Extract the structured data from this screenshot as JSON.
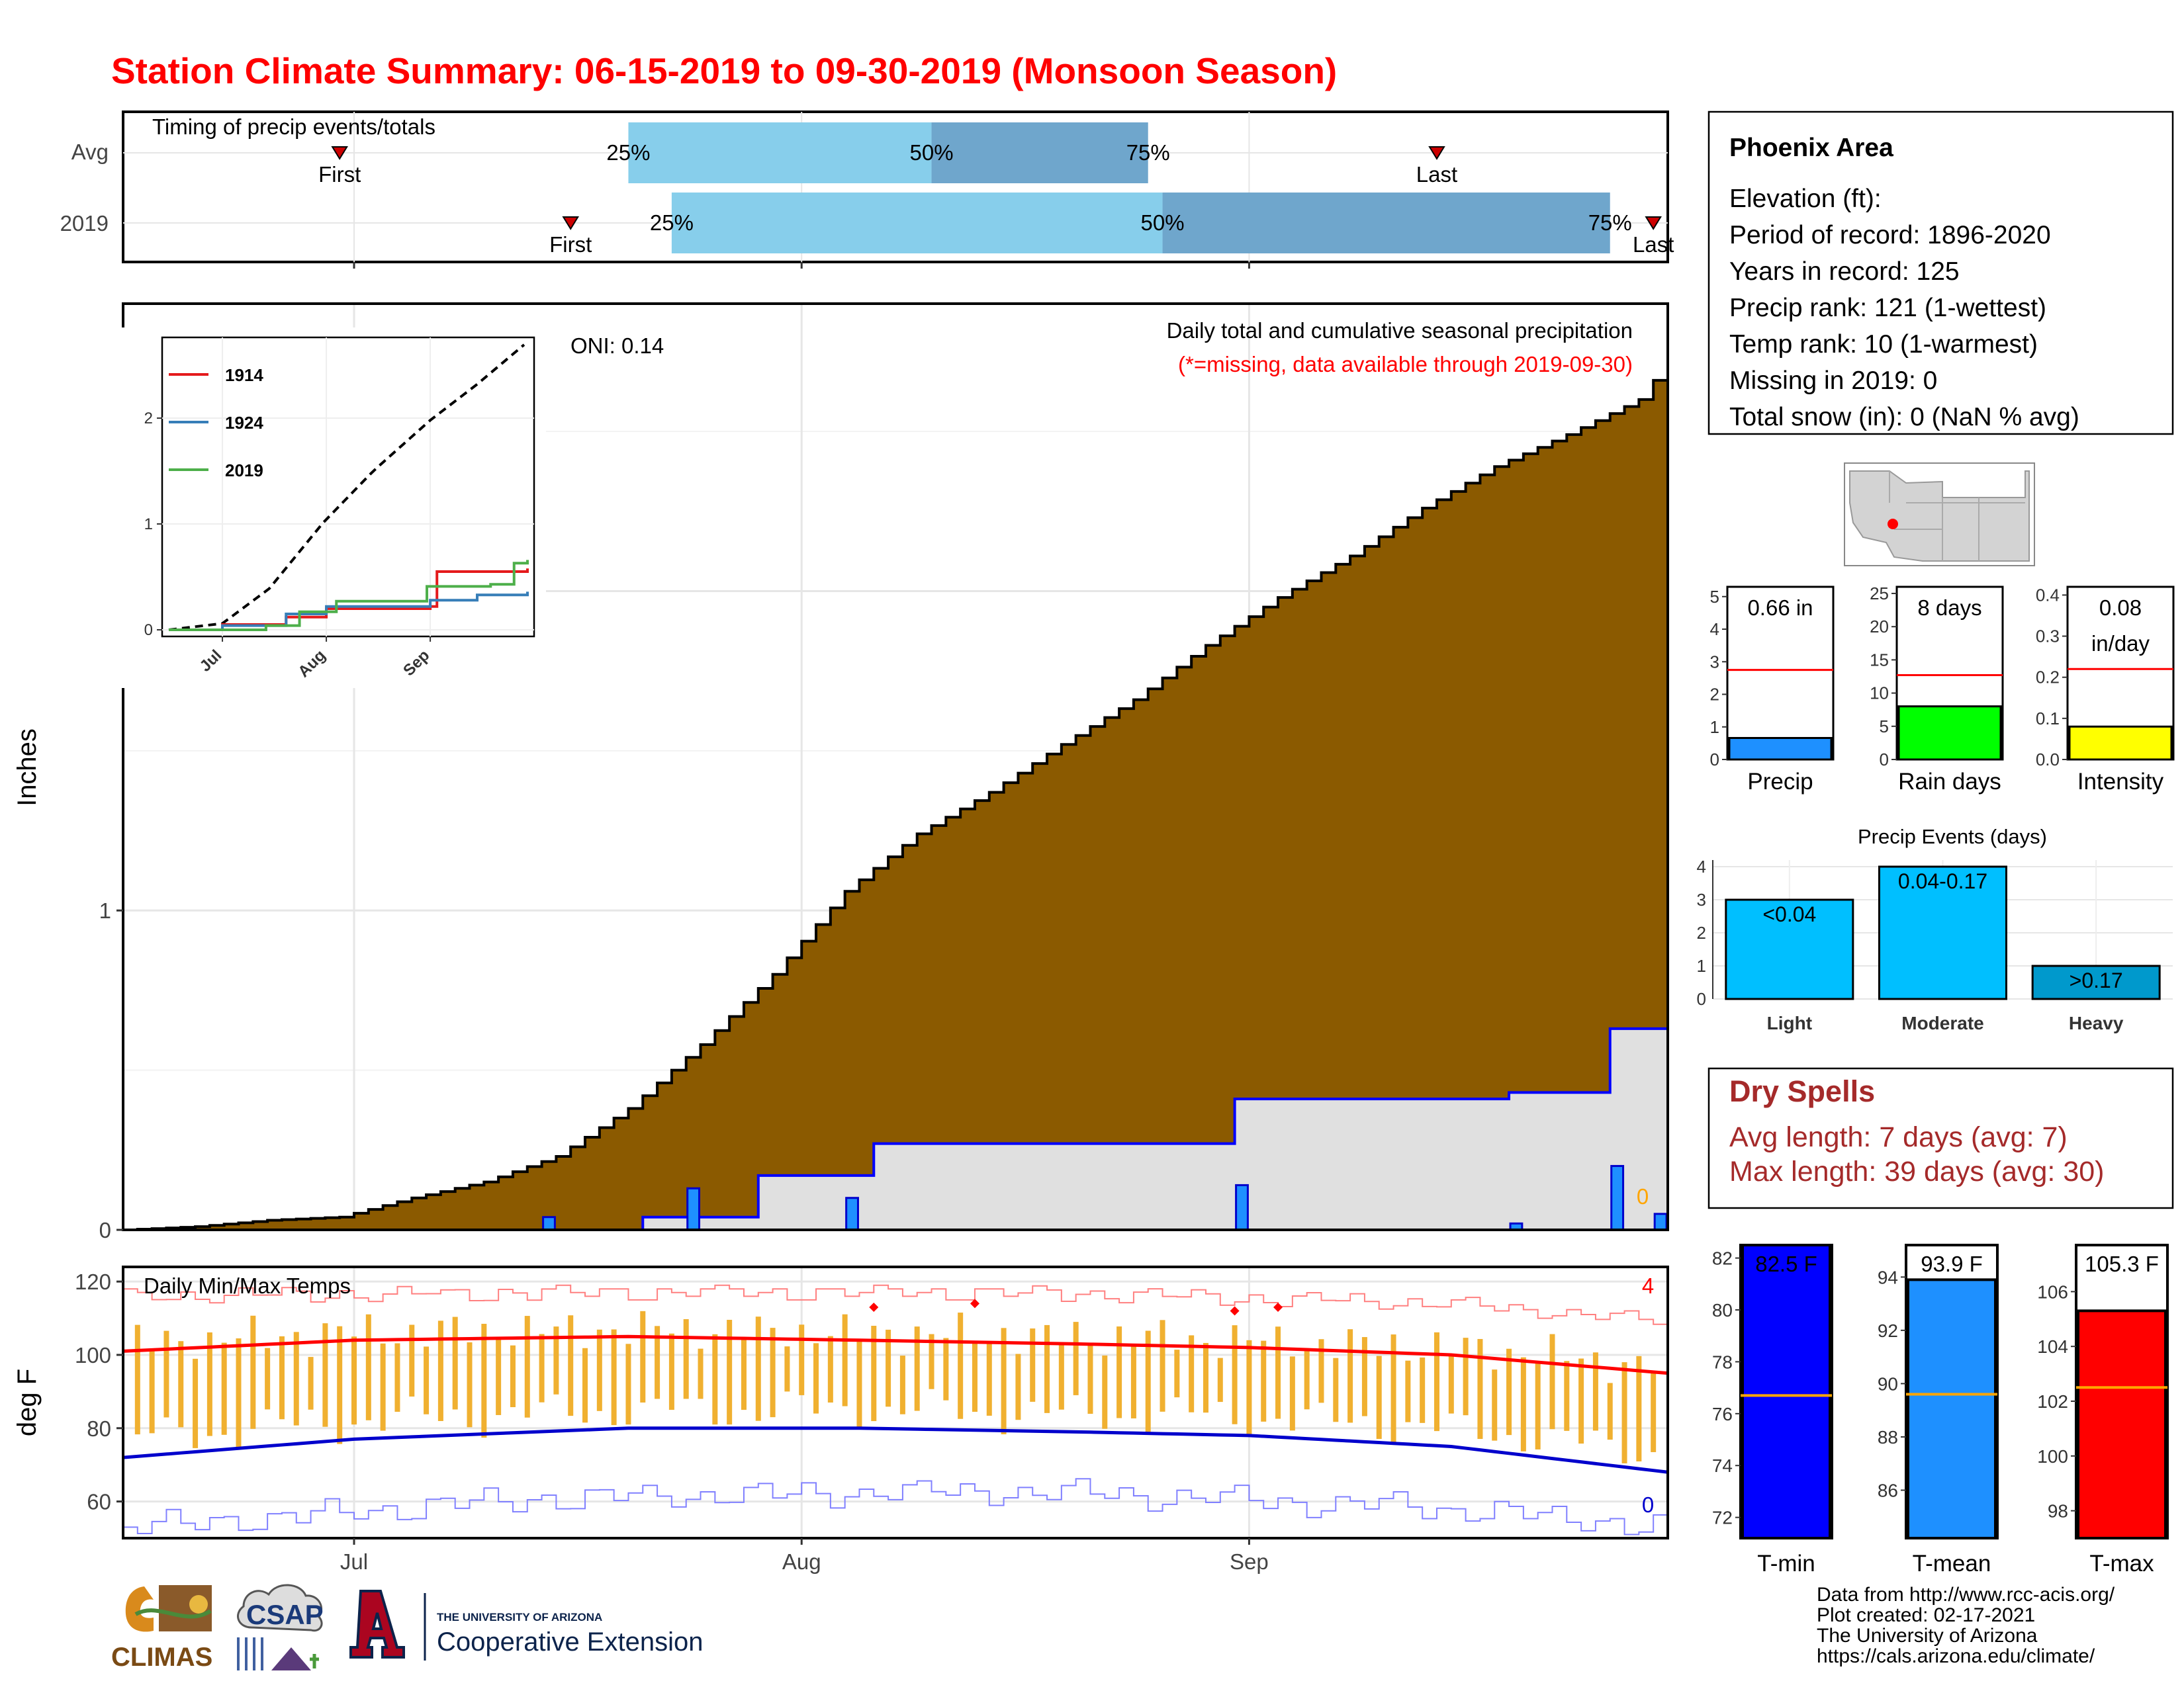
{
  "page": {
    "title": "Station Climate Summary: 06-15-2019 to 09-30-2019 (Monsoon Season)",
    "title_color": "#ff0000",
    "month_labels": [
      "Jul",
      "Aug",
      "Sep"
    ]
  },
  "timing": {
    "title": "Timing of precip events/totals",
    "rows": [
      {
        "label": "Avg",
        "first_date": "2019-06-30",
        "last_date": "2019-09-14",
        "p25_date": "2019-07-20",
        "p50_date": "2019-08-10",
        "p75_date": "2019-08-25",
        "first_label": "First",
        "last_label": "Last",
        "p25_label": "25%",
        "p50_label": "50%",
        "p75_label": "75%"
      },
      {
        "label": "2019",
        "first_date": "2019-07-16",
        "last_date": "2019-09-29",
        "p25_date": "2019-07-23",
        "p50_date": "2019-08-26",
        "p75_date": "2019-09-26",
        "first_label": "First",
        "last_label": "Last",
        "p25_label": "25%",
        "p50_label": "50%",
        "p75_label": "75%"
      }
    ],
    "colors": {
      "light": "#87ceeb",
      "dark": "#6fa6cc",
      "marker": "#cc0000"
    }
  },
  "precip": {
    "ylabel": "Inches",
    "subtitle": "Daily total and cumulative seasonal precipitation",
    "note": "(*=missing, data available through 2019-09-30)",
    "oni": "ONI: 0.14",
    "missing_count": "0",
    "colors": {
      "avg_fill": "#8b5a00",
      "obs_fill": "#e0e0e0",
      "obs_line": "#0000ff",
      "daily_bar": "#1e90ff",
      "missing": "#ffa500",
      "note": "#ff0000"
    }
  },
  "inset": {
    "legend": [
      {
        "name": "1914",
        "color": "#e41a1c"
      },
      {
        "name": "1924",
        "color": "#377eb8"
      },
      {
        "name": "2019",
        "color": "#4daf4a"
      }
    ]
  },
  "temps": {
    "title": "Daily Min/Max Temps",
    "ylabel": "deg F",
    "record_high_count": "4",
    "record_low_count": "0",
    "colors": {
      "range_bar": "#f0b030",
      "avg_max": "#ff0000",
      "avg_min": "#0000cc",
      "rec_max": "#ff8080",
      "rec_min": "#8080ff",
      "record_marker": "#ff0000"
    }
  },
  "station": {
    "name": "Phoenix Area",
    "lines": [
      "Elevation (ft):",
      "Period of record: 1896-2020",
      "Years in record: 125",
      "Precip rank: 121 (1-wettest)",
      "Temp rank: 10 (1-warmest)",
      "Missing in 2019: 0",
      "Total snow (in): 0 (NaN % avg)"
    ]
  },
  "summary_bars": [
    {
      "label": "Precip",
      "value": 0.66,
      "avg": 2.75,
      "ylim": [
        0,
        5.3
      ],
      "ticks": [
        0,
        1,
        2,
        3,
        4,
        5
      ],
      "text": "0.66 in",
      "color": "#1e90ff"
    },
    {
      "label": "Rain days",
      "value": 8,
      "avg": 12.7,
      "ylim": [
        0,
        26
      ],
      "ticks": [
        0,
        5,
        10,
        15,
        20,
        25
      ],
      "text": "8 days",
      "color": "#00ff00"
    },
    {
      "label": "Intensity",
      "value": 0.08,
      "avg": 0.22,
      "ylim": [
        0,
        0.42
      ],
      "ticks": [
        "0.0",
        "0.1",
        "0.2",
        "0.3",
        "0.4"
      ],
      "text": "0.08",
      "text2": "in/day",
      "color": "#ffff00"
    }
  ],
  "events": {
    "title": "Precip Events (days)",
    "categories": [
      "Light",
      "Moderate",
      "Heavy"
    ],
    "values": [
      3,
      4,
      1
    ],
    "labels": [
      "<0.04",
      "0.04-0.17",
      ">0.17"
    ],
    "colors": [
      "#00bfff",
      "#00bfff",
      "#0099cc"
    ],
    "ylim": [
      0,
      4.2
    ]
  },
  "dry_spells": {
    "title": "Dry Spells",
    "lines": [
      "Avg length: 7 days (avg: 7)",
      "Max length: 39 days (avg: 30)"
    ],
    "color": "#a52a2a"
  },
  "temp_bars": [
    {
      "label": "T-min",
      "value": 82.5,
      "avg": 76.7,
      "ylim": [
        71.2,
        82.5
      ],
      "ticks": [
        72,
        74,
        76,
        78,
        80,
        82
      ],
      "text": "82.5 F",
      "color": "#0000ff"
    },
    {
      "label": "T-mean",
      "value": 93.9,
      "avg": 89.6,
      "ylim": [
        84.2,
        95.2
      ],
      "ticks": [
        86,
        88,
        90,
        92,
        94
      ],
      "text": "93.9 F",
      "color": "#1e90ff"
    },
    {
      "label": "T-max",
      "value": 105.3,
      "avg": 102.5,
      "ylim": [
        97.0,
        107.7
      ],
      "ticks": [
        98,
        100,
        102,
        104,
        106
      ],
      "text": "105.3 F",
      "color": "#ff0000"
    }
  ],
  "credits": {
    "lines": [
      "Data from http://www.rcc-acis.org/",
      "Plot created: 02-17-2021",
      "The University of Arizona",
      "https://cals.arizona.edu/climate/"
    ],
    "logos": {
      "climas": "CLIMAS",
      "csap": "CSAP",
      "ua_small": "THE UNIVERSITY OF ARIZONA",
      "ua_big": "Cooperative Extension"
    }
  },
  "chart_data": [
    {
      "type": "area",
      "title": "Daily total and cumulative seasonal precipitation",
      "ylabel": "Inches",
      "xlim": [
        "2019-06-15",
        "2019-09-30"
      ],
      "ylim": [
        0,
        2.9
      ],
      "series": [
        {
          "name": "",
          "x": [
            "2019-06-15",
            "2019-06-20",
            "2019-06-25",
            "2019-06-30",
            "2019-07-05",
            "2019-07-10",
            "2019-07-15",
            "2019-07-20",
            "2019-07-25",
            "2019-07-30",
            "2019-08-04",
            "2019-08-09",
            "2019-08-14",
            "2019-08-19",
            "2019-08-24",
            "2019-08-29",
            "2019-09-03",
            "2019-09-08",
            "2019-09-13",
            "2019-09-18",
            "2019-09-23",
            "2019-09-28",
            "2019-09-30"
          ],
          "values": [
            0.0,
            0.01,
            0.03,
            0.04,
            0.1,
            0.15,
            0.23,
            0.38,
            0.58,
            0.8,
            1.06,
            1.24,
            1.37,
            1.52,
            1.66,
            1.83,
            1.98,
            2.11,
            2.26,
            2.39,
            2.49,
            2.6,
            2.72
          ]
        },
        {
          "name": "",
          "x": [
            "2019-06-15",
            "2019-07-14",
            "2019-07-21",
            "2019-07-29",
            "2019-08-06",
            "2019-08-31",
            "2019-09-19",
            "2019-09-26",
            "2019-09-30"
          ],
          "values": [
            0.0,
            0.0,
            0.04,
            0.17,
            0.27,
            0.41,
            0.43,
            0.63,
            0.66
          ]
        },
        {
          "name": "",
          "x": [
            "2019-07-14",
            "2019-07-24",
            "2019-08-04",
            "2019-08-31",
            "2019-09-19",
            "2019-09-26",
            "2019-09-29"
          ],
          "values": [
            0.04,
            0.13,
            0.1,
            0.14,
            0.02,
            0.2,
            0.05
          ]
        }
      ]
    },
    {
      "type": "line",
      "ylim": [
        0,
        2.7
      ],
      "series": [
        {
          "name": "",
          "x": [
            "2019-06-15",
            "2019-07-01",
            "2019-07-15",
            "2019-07-31",
            "2019-08-15",
            "2019-09-01",
            "2019-09-15",
            "2019-09-30"
          ],
          "values": [
            0.0,
            0.06,
            0.39,
            1.01,
            1.5,
            1.98,
            2.32,
            2.72
          ]
        },
        {
          "name": "1914",
          "x": [
            "2019-06-15",
            "2019-07-01",
            "2019-07-20",
            "2019-08-01",
            "2019-09-01",
            "2019-09-03",
            "2019-09-30"
          ],
          "values": [
            0.0,
            0.05,
            0.12,
            0.2,
            0.22,
            0.55,
            0.58
          ]
        },
        {
          "name": "1924",
          "x": [
            "2019-06-15",
            "2019-07-01",
            "2019-07-20",
            "2019-08-01",
            "2019-09-01",
            "2019-09-15",
            "2019-09-30"
          ],
          "values": [
            0.0,
            0.04,
            0.15,
            0.22,
            0.28,
            0.33,
            0.36
          ]
        },
        {
          "name": "2019",
          "x": [
            "2019-06-15",
            "2019-07-14",
            "2019-07-24",
            "2019-08-04",
            "2019-08-31",
            "2019-09-19",
            "2019-09-26",
            "2019-09-30"
          ],
          "values": [
            0.0,
            0.04,
            0.17,
            0.27,
            0.41,
            0.43,
            0.63,
            0.66
          ]
        }
      ]
    },
    {
      "type": "line",
      "title": "Daily Min/Max Temps",
      "ylabel": "deg F",
      "ylim": [
        50,
        124
      ],
      "series": [
        {
          "name": "",
          "x": [
            "2019-06-15",
            "2019-07-01",
            "2019-07-20",
            "2019-08-05",
            "2019-08-20",
            "2019-09-01",
            "2019-09-15",
            "2019-09-30"
          ],
          "values": [
            101,
            104,
            105,
            104,
            103,
            102,
            100,
            95
          ]
        },
        {
          "name": "",
          "x": [
            "2019-06-15",
            "2019-07-01",
            "2019-07-20",
            "2019-08-05",
            "2019-08-20",
            "2019-09-01",
            "2019-09-15",
            "2019-09-30"
          ],
          "values": [
            72,
            77,
            80,
            80,
            79,
            78,
            75,
            68
          ]
        },
        {
          "name": "",
          "x": [
            "2019-06-15",
            "2019-07-15",
            "2019-08-15",
            "2019-09-15",
            "2019-09-30"
          ],
          "values": [
            116,
            117,
            117,
            114,
            109
          ]
        },
        {
          "name": "",
          "x": [
            "2019-06-15",
            "2019-07-15",
            "2019-08-15",
            "2019-09-15",
            "2019-09-30"
          ],
          "values": [
            53,
            61,
            63,
            58,
            53
          ]
        },
        {
          "name": "",
          "x": [
            "2019-08-06",
            "2019-08-13",
            "2019-08-31",
            "2019-09-03"
          ],
          "values": [
            113,
            114,
            112,
            113
          ]
        }
      ]
    }
  ]
}
